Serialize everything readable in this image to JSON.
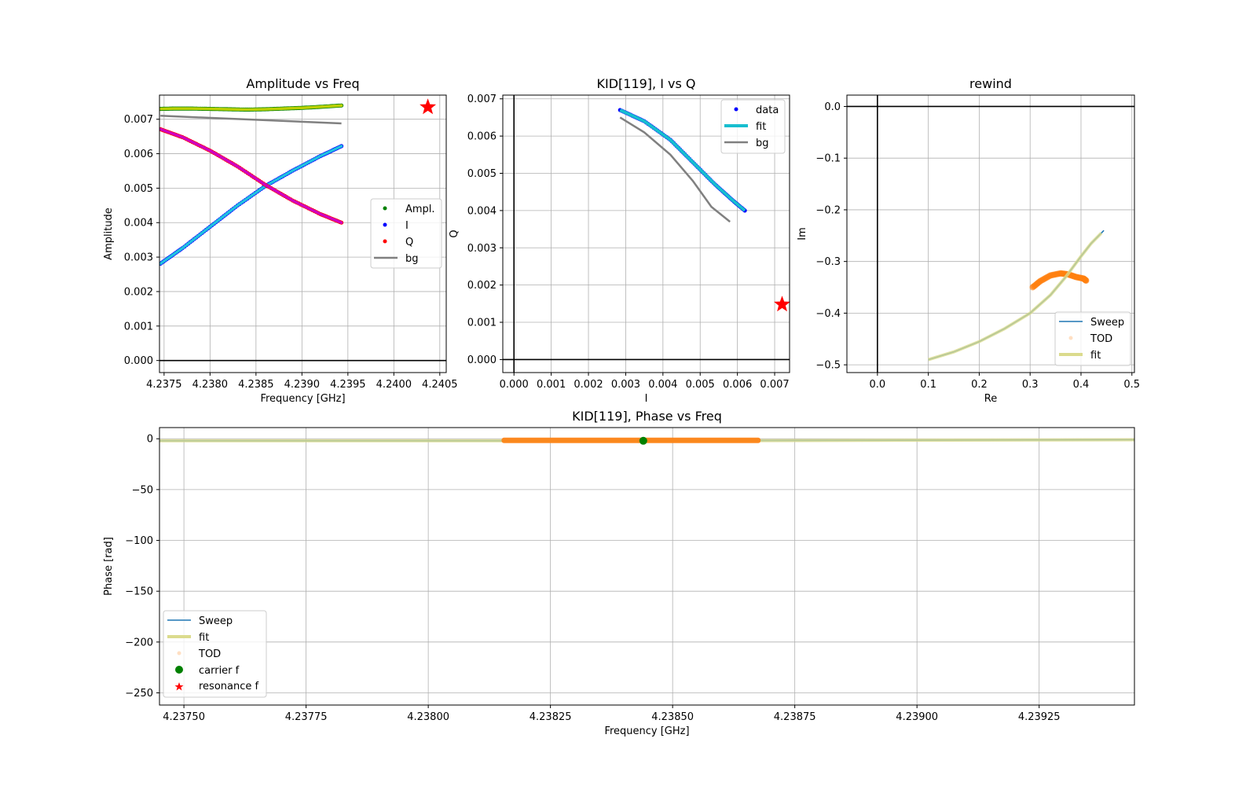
{
  "chart_data": [
    {
      "id": "amp",
      "type": "scatter",
      "title": "Amplitude vs Freq",
      "xlabel": "Frequency [GHz]",
      "ylabel": "Amplitude",
      "xlim": [
        4.23745,
        4.24057
      ],
      "ylim": [
        -0.00035,
        0.0077
      ],
      "xticks": [
        4.2375,
        4.238,
        4.2385,
        4.239,
        4.2395,
        4.24,
        4.2405
      ],
      "xtick_labels": [
        "4.2375",
        "4.2380",
        "4.2385",
        "4.2390",
        "4.2395",
        "4.2400",
        "4.2405"
      ],
      "yticks": [
        0,
        0.001,
        0.002,
        0.003,
        0.004,
        0.005,
        0.006,
        0.007
      ],
      "ytick_labels": [
        "0.000",
        "0.001",
        "0.002",
        "0.003",
        "0.004",
        "0.005",
        "0.006",
        "0.007"
      ],
      "zero_lines": {
        "y": true,
        "x": false
      },
      "grid": true,
      "legend_position": "center-right",
      "series": [
        {
          "name": "Ampl.",
          "style": "points",
          "color": "#008000",
          "overlay_color": "#bcd000",
          "x": [
            4.23746,
            4.2376,
            4.2378,
            4.238,
            4.2382,
            4.2384,
            4.2386,
            4.2388,
            4.239,
            4.2392,
            4.23943
          ],
          "y": [
            0.0073,
            0.00731,
            0.00731,
            0.0073,
            0.00729,
            0.00728,
            0.00729,
            0.00731,
            0.00733,
            0.00736,
            0.0074
          ]
        },
        {
          "name": "I",
          "style": "points",
          "color": "#0000ff",
          "overlay_color": "#20c0e0",
          "x": [
            4.23746,
            4.2377,
            4.238,
            4.2383,
            4.2386,
            4.2389,
            4.2392,
            4.23943
          ],
          "y": [
            0.00281,
            0.00326,
            0.00388,
            0.0045,
            0.00506,
            0.00551,
            0.00593,
            0.00622
          ]
        },
        {
          "name": "Q",
          "style": "points",
          "color": "#ff0000",
          "overlay_color": "#d000c0",
          "x": [
            4.23746,
            4.2377,
            4.238,
            4.2383,
            4.2386,
            4.2389,
            4.2392,
            4.23943
          ],
          "y": [
            0.00671,
            0.00648,
            0.00609,
            0.00563,
            0.0051,
            0.00464,
            0.00425,
            0.004
          ]
        },
        {
          "name": "bg",
          "style": "line",
          "color": "#808080",
          "x": [
            4.23746,
            4.23943
          ],
          "y": [
            0.0071,
            0.00688
          ]
        }
      ],
      "star": {
        "x": 4.24037,
        "y": 0.00735,
        "color": "#ff0000"
      }
    },
    {
      "id": "iq",
      "type": "scatter",
      "title": "KID[119], I vs Q",
      "xlabel": "I",
      "ylabel": "Q",
      "xlim": [
        -0.0003,
        0.0074
      ],
      "ylim": [
        -0.00035,
        0.0071
      ],
      "xticks": [
        0,
        0.001,
        0.002,
        0.003,
        0.004,
        0.005,
        0.006,
        0.007
      ],
      "xtick_labels": [
        "0.000",
        "0.001",
        "0.002",
        "0.003",
        "0.004",
        "0.005",
        "0.006",
        "0.007"
      ],
      "yticks": [
        0,
        0.001,
        0.002,
        0.003,
        0.004,
        0.005,
        0.006,
        0.007
      ],
      "ytick_labels": [
        "0.000",
        "0.001",
        "0.002",
        "0.003",
        "0.004",
        "0.005",
        "0.006",
        "0.007"
      ],
      "zero_lines": {
        "y": true,
        "x": true
      },
      "grid": true,
      "legend_position": "top-right",
      "series": [
        {
          "name": "data",
          "style": "points",
          "color": "#0000ff",
          "x": [
            0.00285,
            0.0035,
            0.0042,
            0.0048,
            0.0054,
            0.0059,
            0.0062
          ],
          "y": [
            0.0067,
            0.0064,
            0.0059,
            0.0053,
            0.0047,
            0.00425,
            0.004
          ]
        },
        {
          "name": "fit",
          "style": "line",
          "color": "#17becf",
          "x": [
            0.00285,
            0.0035,
            0.0042,
            0.0048,
            0.0054,
            0.0059,
            0.0062
          ],
          "y": [
            0.0067,
            0.0064,
            0.0059,
            0.0053,
            0.0047,
            0.00425,
            0.004
          ]
        },
        {
          "name": "bg",
          "style": "line",
          "color": "#808080",
          "x": [
            0.00285,
            0.0035,
            0.0042,
            0.0048,
            0.0053,
            0.0058
          ],
          "y": [
            0.0065,
            0.0061,
            0.0055,
            0.0048,
            0.0041,
            0.0037
          ]
        }
      ],
      "star": {
        "x": 0.0072,
        "y": 0.00148,
        "color": "#ff0000"
      }
    },
    {
      "id": "rewind",
      "type": "line",
      "title": "rewind",
      "xlabel": "Re",
      "ylabel": "Im",
      "xlim": [
        -0.06,
        0.505
      ],
      "ylim": [
        -0.515,
        0.022
      ],
      "xticks": [
        0,
        0.1,
        0.2,
        0.3,
        0.4,
        0.5
      ],
      "xtick_labels": [
        "0.0",
        "0.1",
        "0.2",
        "0.3",
        "0.4",
        "0.5"
      ],
      "yticks": [
        0,
        -0.1,
        -0.2,
        -0.3,
        -0.4,
        -0.5
      ],
      "ytick_labels": [
        "0.0",
        "−0.1",
        "−0.2",
        "−0.3",
        "−0.4",
        "−0.5"
      ],
      "zero_lines": {
        "y": true,
        "x": true
      },
      "grid": true,
      "legend_position": "bottom-right",
      "series": [
        {
          "name": "Sweep",
          "style": "line",
          "color": "#1f77b4",
          "x": [
            0.1,
            0.15,
            0.2,
            0.25,
            0.3,
            0.34,
            0.37,
            0.4,
            0.42,
            0.445
          ],
          "y": [
            -0.49,
            -0.475,
            -0.455,
            -0.43,
            -0.4,
            -0.365,
            -0.33,
            -0.29,
            -0.265,
            -0.24
          ]
        },
        {
          "name": "TOD",
          "style": "points",
          "color": "#ff7f0e",
          "x": [
            0.305,
            0.32,
            0.34,
            0.36,
            0.375,
            0.39,
            0.405,
            0.41
          ],
          "y": [
            -0.35,
            -0.338,
            -0.327,
            -0.323,
            -0.325,
            -0.33,
            -0.333,
            -0.337
          ]
        },
        {
          "name": "fit",
          "style": "line",
          "color": "#dbdb8d",
          "x": [
            0.1,
            0.15,
            0.2,
            0.25,
            0.3,
            0.34,
            0.37,
            0.4,
            0.42,
            0.44
          ],
          "y": [
            -0.49,
            -0.475,
            -0.455,
            -0.43,
            -0.4,
            -0.365,
            -0.33,
            -0.29,
            -0.265,
            -0.245
          ]
        }
      ]
    },
    {
      "id": "phase",
      "type": "line",
      "title": "KID[119], Phase vs Freq",
      "xlabel": "Frequency [GHz]",
      "ylabel": "Phase [rad]",
      "xlim": [
        4.23745,
        4.239445
      ],
      "ylim": [
        -262,
        11
      ],
      "xticks": [
        4.2375,
        4.23775,
        4.238,
        4.23825,
        4.2385,
        4.23875,
        4.239,
        4.23925
      ],
      "xtick_labels": [
        "4.23750",
        "4.23775",
        "4.23800",
        "4.23825",
        "4.23850",
        "4.23875",
        "4.23900",
        "4.23925"
      ],
      "yticks": [
        0,
        -50,
        -100,
        -150,
        -200,
        -250
      ],
      "ytick_labels": [
        "0",
        "−50",
        "−100",
        "−150",
        "−200",
        "−250"
      ],
      "zero_lines": {
        "y": false,
        "x": false
      },
      "grid": true,
      "legend_position": "bottom-left",
      "series": [
        {
          "name": "Sweep",
          "style": "line",
          "color": "#1f77b4",
          "x": [
            4.23745,
            4.2385,
            4.239445
          ],
          "y": [
            -2,
            -2,
            -1
          ]
        },
        {
          "name": "fit",
          "style": "line",
          "color": "#dbdb8d",
          "x": [
            4.23745,
            4.2385,
            4.239445
          ],
          "y": [
            -2,
            -2,
            -1
          ]
        },
        {
          "name": "TOD",
          "style": "band",
          "color": "#ff7f0e",
          "x": [
            4.23815,
            4.23868
          ],
          "y": [
            -2,
            -2
          ]
        },
        {
          "name": "carrier f",
          "style": "marker",
          "color": "#008000",
          "x": [
            4.23844
          ],
          "y": [
            -2
          ]
        },
        {
          "name": "resonance f",
          "style": "legend-only",
          "color": "#ff0000",
          "x": [],
          "y": []
        }
      ]
    }
  ]
}
